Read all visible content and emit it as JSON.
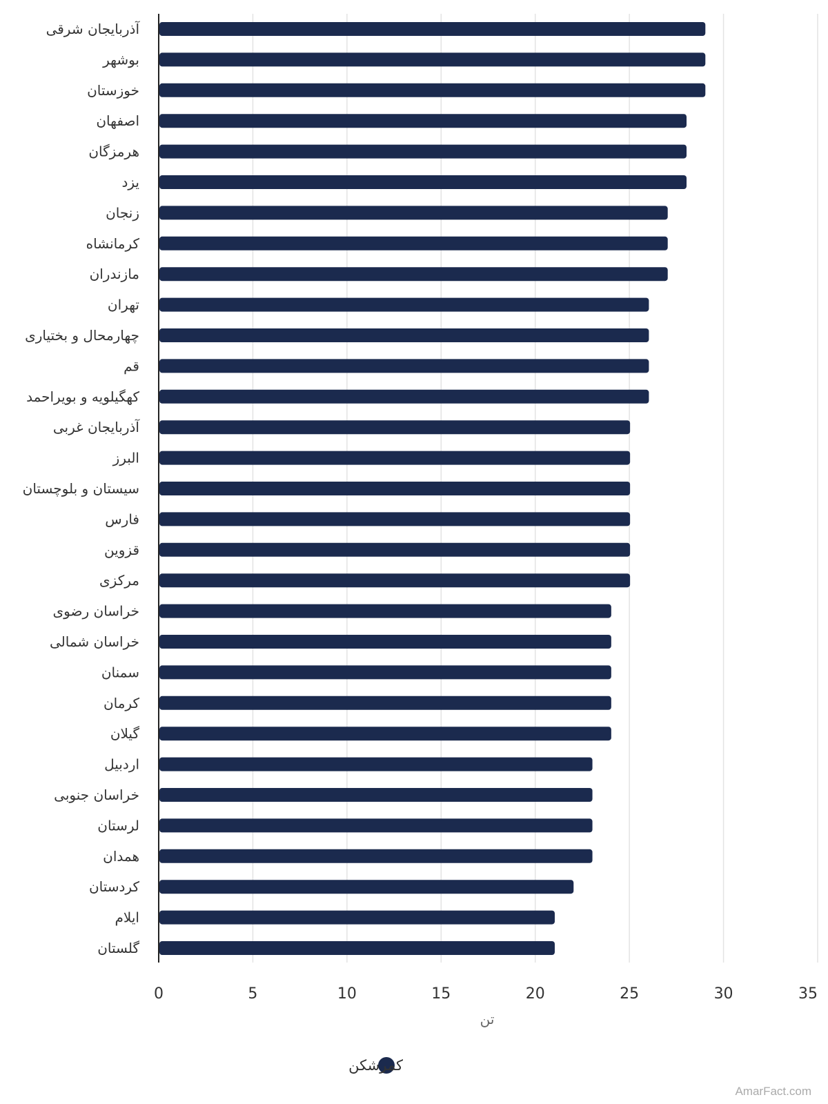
{
  "chart_data": {
    "type": "bar",
    "orientation": "horizontal",
    "categories": [
      "آذربایجان شرقی",
      "بوشهر",
      "خوزستان",
      "اصفهان",
      "هرمزگان",
      "یزد",
      "زنجان",
      "کرمانشاه",
      "مازندران",
      "تهران",
      "چهارمحال و بختیاری",
      "قم",
      "کهگیلویه و بویراحمد",
      "آذربایجان غربی",
      "البرز",
      "سیستان و بلوچستان",
      "فارس",
      "قزوین",
      "مرکزی",
      "خراسان رضوی",
      "خراسان شمالی",
      "سمنان",
      "کرمان",
      "گیلان",
      "اردبیل",
      "خراسان جنوبی",
      "لرستان",
      "همدان",
      "کردستان",
      "ایلام",
      "گلستان"
    ],
    "series": [
      {
        "name": "کمرشکن",
        "values": [
          29,
          29,
          29,
          28,
          28,
          28,
          27,
          27,
          27,
          26,
          26,
          26,
          26,
          25,
          25,
          25,
          25,
          25,
          25,
          24,
          24,
          24,
          24,
          24,
          23,
          23,
          23,
          23,
          22,
          21,
          21
        ]
      }
    ],
    "xlabel": "تن",
    "xlim": [
      0,
      35
    ],
    "xticks": [
      0,
      5,
      10,
      15,
      20,
      25,
      30,
      35
    ],
    "grid": true,
    "legend_position": "bottom",
    "colors": {
      "bar": "#1b2a4e",
      "grid": "#e3e3e3",
      "axis": "#222222",
      "label": "#333333"
    }
  },
  "watermark": "AmarFact.com"
}
